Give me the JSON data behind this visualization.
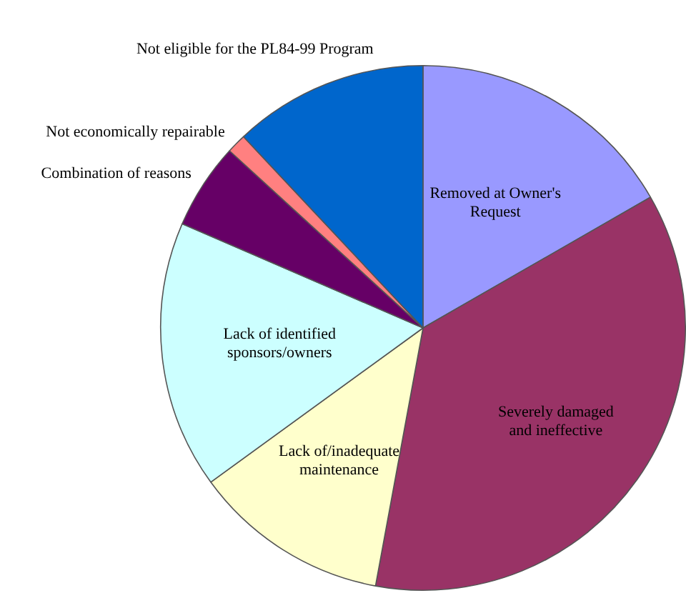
{
  "chart_data": {
    "type": "pie",
    "categories": [
      "Removed at Owner's Request",
      "Severely damaged and ineffective",
      "Lack of/inadequate maintenance",
      "Lack of identified sponsors/owners",
      "Combination of reasons",
      "Not economically repairable",
      "Not eligible for the PL84-99 Program"
    ],
    "values": [
      16.7,
      36.2,
      12.1,
      16.5,
      5.3,
      1.2,
      12.0
    ],
    "colors": [
      "#9999ff",
      "#993366",
      "#ffffcc",
      "#ccffff",
      "#660066",
      "#ff8080",
      "#0066cc"
    ],
    "legend": false
  }
}
